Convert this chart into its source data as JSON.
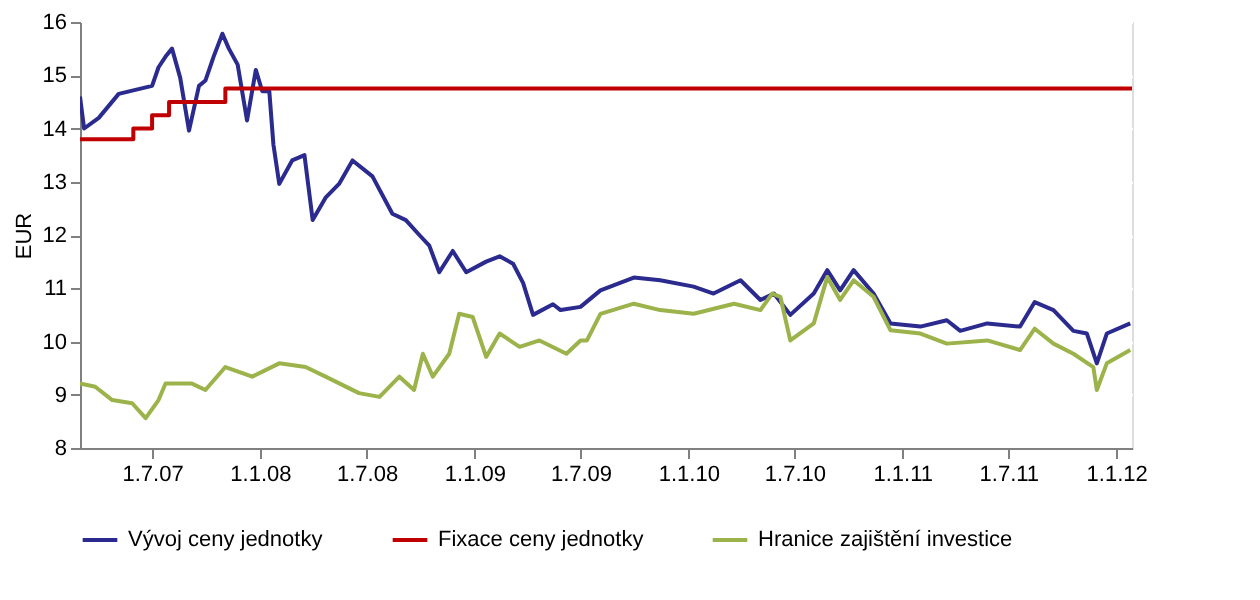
{
  "chart_data": {
    "type": "line",
    "ylabel": "EUR",
    "xlim": [
      "2007-02-28",
      "2012-01-28"
    ],
    "xticks": [
      {
        "value": "2007-07-01",
        "label": "1.7.07"
      },
      {
        "value": "2008-01-01",
        "label": "1.1.08"
      },
      {
        "value": "2008-07-01",
        "label": "1.7.08"
      },
      {
        "value": "2009-01-01",
        "label": "1.1.09"
      },
      {
        "value": "2009-07-01",
        "label": "1.7.09"
      },
      {
        "value": "2010-01-01",
        "label": "1.1.10"
      },
      {
        "value": "2010-07-01",
        "label": "1.7.10"
      },
      {
        "value": "2011-01-01",
        "label": "1.1.11"
      },
      {
        "value": "2011-07-01",
        "label": "1.7.11"
      },
      {
        "value": "2012-01-01",
        "label": "1.1.12"
      }
    ],
    "ylim": [
      8,
      16
    ],
    "yticks": [
      8,
      9,
      10,
      11,
      12,
      13,
      14,
      15,
      16
    ],
    "grid": "y",
    "legend": "bottom",
    "series": [
      {
        "name": "Vývoj ceny jednotky",
        "color": "#2b2b8f",
        "x": [
          "2007-02-28",
          "2007-03-07",
          "2007-04-01",
          "2007-05-05",
          "2007-07-01",
          "2007-07-12",
          "2007-07-24",
          "2007-08-04",
          "2007-08-18",
          "2007-09-02",
          "2007-09-19",
          "2007-09-30",
          "2007-10-14",
          "2007-10-29",
          "2007-11-09",
          "2007-11-24",
          "2007-12-10",
          "2007-12-25",
          "2008-01-05",
          "2008-01-17",
          "2008-01-24",
          "2008-02-03",
          "2008-02-25",
          "2008-03-17",
          "2008-03-31",
          "2008-04-22",
          "2008-05-15",
          "2008-06-07",
          "2008-07-11",
          "2008-08-14",
          "2008-09-06",
          "2008-09-29",
          "2008-10-16",
          "2008-11-02",
          "2008-11-25",
          "2008-12-18",
          "2009-01-21",
          "2009-02-13",
          "2009-03-08",
          "2009-03-25",
          "2009-04-11",
          "2009-05-15",
          "2009-05-28",
          "2009-07-01",
          "2009-08-04",
          "2009-09-30",
          "2009-11-14",
          "2010-01-10",
          "2010-02-13",
          "2010-03-31",
          "2010-05-04",
          "2010-05-27",
          "2010-06-24",
          "2010-08-03",
          "2010-08-26",
          "2010-09-17",
          "2010-10-10",
          "2010-11-13",
          "2010-12-12",
          "2011-02-01",
          "2011-03-18",
          "2011-04-10",
          "2011-05-26",
          "2011-07-21",
          "2011-08-15",
          "2011-09-16",
          "2011-10-20",
          "2011-11-12",
          "2011-11-29",
          "2011-12-16",
          "2012-01-25"
        ],
        "values": [
          14.6,
          14.0,
          14.2,
          14.65,
          14.8,
          15.15,
          15.35,
          15.5,
          14.95,
          13.96,
          14.8,
          14.9,
          15.35,
          15.78,
          15.5,
          15.2,
          14.15,
          15.1,
          14.7,
          14.7,
          13.7,
          12.96,
          13.4,
          13.5,
          12.28,
          12.7,
          12.96,
          13.4,
          13.1,
          12.4,
          12.28,
          12.0,
          11.8,
          11.3,
          11.7,
          11.3,
          11.5,
          11.6,
          11.46,
          11.1,
          10.5,
          10.7,
          10.59,
          10.65,
          10.96,
          11.2,
          11.15,
          11.03,
          10.9,
          11.15,
          10.78,
          10.9,
          10.5,
          10.9,
          11.34,
          10.96,
          11.34,
          10.9,
          10.34,
          10.28,
          10.4,
          10.2,
          10.34,
          10.28,
          10.74,
          10.59,
          10.2,
          10.15,
          9.59,
          10.15,
          10.34
        ]
      },
      {
        "name": "Fixace ceny jednotky",
        "color": "#c00000",
        "type": "step",
        "x": [
          "2007-02-28",
          "2007-05-30",
          "2007-07-01",
          "2007-07-30",
          "2007-11-03",
          "2012-01-28"
        ],
        "values": [
          13.8,
          14.0,
          14.25,
          14.5,
          14.75,
          14.75
        ]
      },
      {
        "name": "Hranice zajištění investice",
        "color": "#9bb34a",
        "x": [
          "2007-02-28",
          "2007-03-26",
          "2007-04-24",
          "2007-05-28",
          "2007-06-20",
          "2007-07-12",
          "2007-07-24",
          "2007-09-07",
          "2007-09-30",
          "2007-11-03",
          "2007-12-19",
          "2008-02-03",
          "2008-03-19",
          "2008-04-22",
          "2008-06-18",
          "2008-07-23",
          "2008-08-26",
          "2008-09-20",
          "2008-10-05",
          "2008-10-22",
          "2008-11-19",
          "2008-12-06",
          "2008-12-29",
          "2009-01-21",
          "2009-02-13",
          "2009-03-19",
          "2009-04-22",
          "2009-06-07",
          "2009-07-01",
          "2009-07-12",
          "2009-08-04",
          "2009-09-30",
          "2009-11-14",
          "2010-01-10",
          "2010-03-20",
          "2010-05-04",
          "2010-05-24",
          "2010-06-07",
          "2010-06-24",
          "2010-08-03",
          "2010-08-26",
          "2010-09-17",
          "2010-10-10",
          "2010-11-13",
          "2010-12-12",
          "2011-02-01",
          "2011-03-18",
          "2011-05-26",
          "2011-07-21",
          "2011-08-15",
          "2011-09-16",
          "2011-10-20",
          "2011-11-23",
          "2011-11-29",
          "2011-12-16",
          "2012-01-25"
        ],
        "values": [
          9.21,
          9.15,
          8.9,
          8.84,
          8.56,
          8.9,
          9.21,
          9.21,
          9.09,
          9.52,
          9.34,
          9.59,
          9.52,
          9.34,
          9.03,
          8.96,
          9.34,
          9.09,
          9.77,
          9.34,
          9.77,
          10.52,
          10.46,
          9.71,
          10.15,
          9.9,
          10.02,
          9.77,
          10.02,
          10.02,
          10.52,
          10.71,
          10.59,
          10.52,
          10.71,
          10.59,
          10.9,
          10.84,
          10.02,
          10.34,
          11.21,
          10.78,
          11.15,
          10.84,
          10.21,
          10.15,
          9.96,
          10.02,
          9.84,
          10.24,
          9.96,
          9.77,
          9.52,
          9.09,
          9.59,
          9.84
        ]
      }
    ]
  }
}
